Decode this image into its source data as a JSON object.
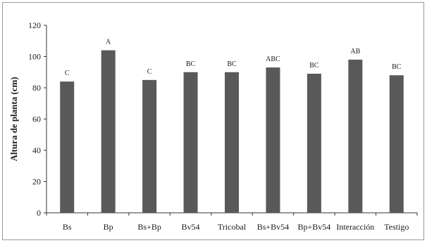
{
  "chart_data": {
    "type": "bar",
    "ylabel": "Altura de planta (cm)",
    "xlabel": "",
    "ylim": [
      0,
      120
    ],
    "yticks": [
      0,
      20,
      40,
      60,
      80,
      100,
      120
    ],
    "grid": false,
    "categories": [
      "Bs",
      "Bp",
      "Bs+Bp",
      "Bv54",
      "Tricobal",
      "Bs+Bv54",
      "Bp+Bv54",
      "Interacción",
      "Testigo"
    ],
    "values": [
      84,
      104,
      85,
      90,
      90,
      93,
      89,
      98,
      88
    ],
    "significance_labels": [
      "C",
      "A",
      "C",
      "BC",
      "BC",
      "ABC",
      "BC",
      "AB",
      "BC"
    ],
    "bar_color": "#595959"
  }
}
